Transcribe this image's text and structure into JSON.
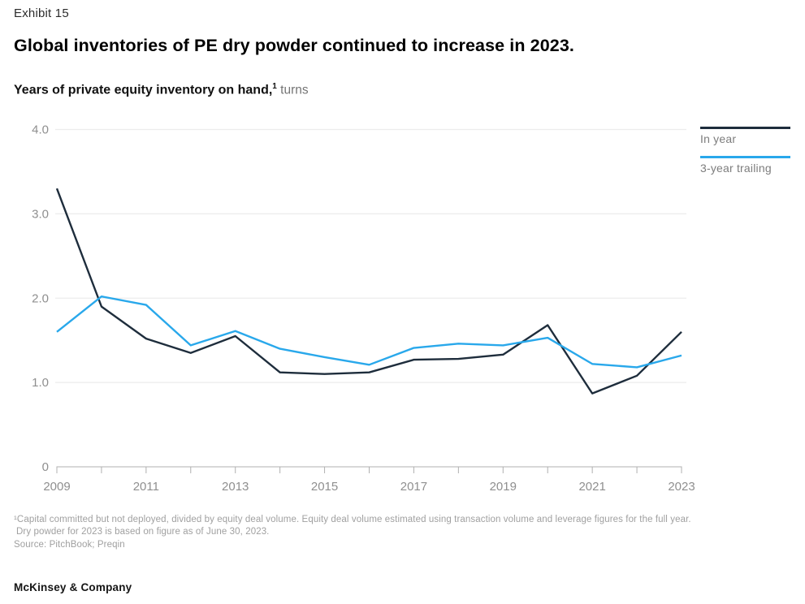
{
  "page": {
    "exhibit_label": "Exhibit 15",
    "title": "Global inventories of PE dry powder continued to increase in 2023.",
    "subtitle_bold": "Years of private equity inventory on hand,",
    "subtitle_superscript": "1",
    "subtitle_suffix": " turns",
    "footnote_line1": "¹Capital committed but not deployed, divided by equity deal volume. Equity deal volume estimated using transaction volume and leverage figures for the full year.",
    "footnote_line2": "Dry powder for 2023 is based on figure as of June 30, 2023.",
    "source_line": "Source: PitchBook; Preqin",
    "brand": "McKinsey & Company"
  },
  "legend": {
    "items": [
      {
        "label": "In year",
        "color": "#1e2d3c"
      },
      {
        "label": "3-year trailing",
        "color": "#29a8eb"
      }
    ]
  },
  "chart_data": {
    "type": "line",
    "x": [
      2009,
      2010,
      2011,
      2012,
      2013,
      2014,
      2015,
      2016,
      2017,
      2018,
      2019,
      2020,
      2021,
      2022,
      2023
    ],
    "series": [
      {
        "name": "In year",
        "color": "#1e2d3c",
        "values": [
          3.3,
          1.9,
          1.52,
          1.35,
          1.55,
          1.12,
          1.1,
          1.12,
          1.27,
          1.28,
          1.33,
          1.68,
          0.87,
          1.08,
          1.6
        ]
      },
      {
        "name": "3-year trailing",
        "color": "#29a8eb",
        "values": [
          1.6,
          2.02,
          1.92,
          1.44,
          1.61,
          1.4,
          1.3,
          1.21,
          1.41,
          1.46,
          1.44,
          1.53,
          1.22,
          1.18,
          1.32
        ]
      }
    ],
    "title": "Years of private equity inventory on hand, turns",
    "xlabel": "",
    "ylabel": "",
    "ylim": [
      0,
      4.0
    ],
    "yticks": [
      {
        "v": 0,
        "label": "0"
      },
      {
        "v": 1,
        "label": "1.0"
      },
      {
        "v": 2,
        "label": "2.0"
      },
      {
        "v": 3,
        "label": "3.0"
      },
      {
        "v": 4,
        "label": "4.0"
      }
    ],
    "xticks": [
      {
        "v": 2009,
        "label": "2009"
      },
      {
        "v": 2011,
        "label": "2011"
      },
      {
        "v": 2013,
        "label": "2013"
      },
      {
        "v": 2015,
        "label": "2015"
      },
      {
        "v": 2017,
        "label": "2017"
      },
      {
        "v": 2019,
        "label": "2019"
      },
      {
        "v": 2021,
        "label": "2021"
      },
      {
        "v": 2023,
        "label": "2023"
      }
    ],
    "grid": "horizontal",
    "legend_position": "top-right"
  },
  "colors": {
    "grid": "#ececec",
    "axis": "#b0b0b0",
    "tick_label": "#8f8f8f"
  }
}
